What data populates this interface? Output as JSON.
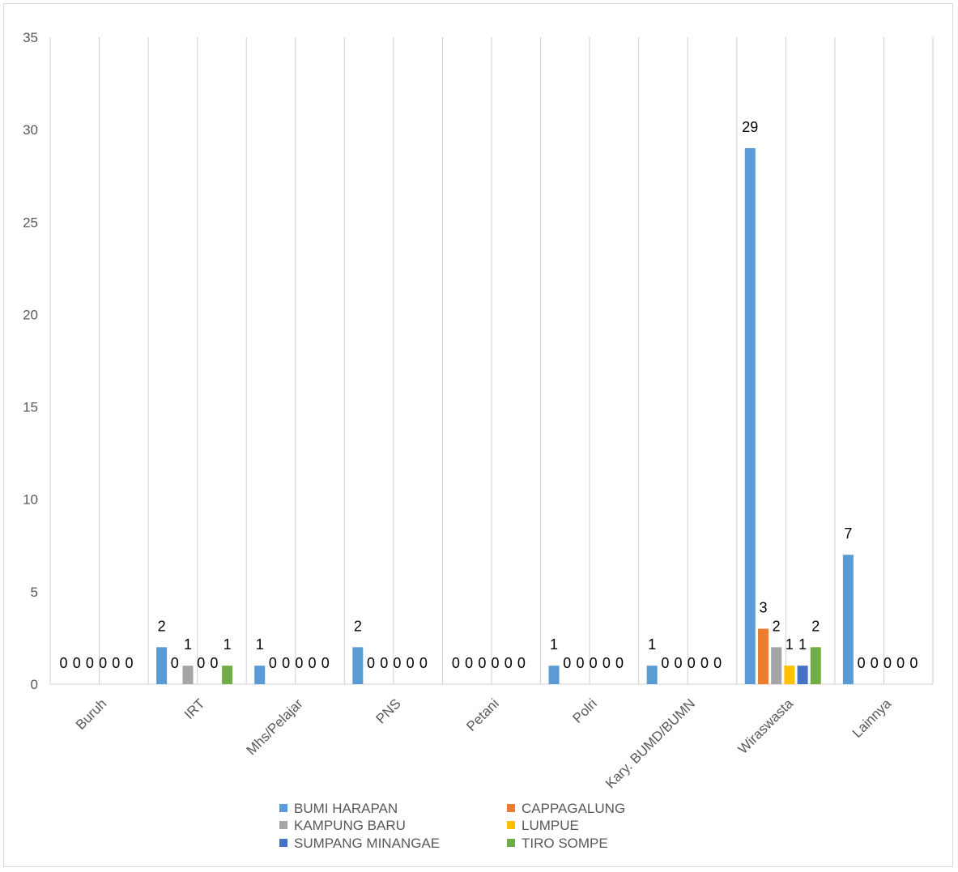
{
  "chart_data": {
    "type": "bar",
    "categories": [
      "Buruh",
      "IRT",
      "Mhs/Pelajar",
      "PNS",
      "Petani",
      "Polri",
      "Kary. BUMD/BUMN",
      "Wiraswasta",
      "Lainnya"
    ],
    "series": [
      {
        "name": "BUMI HARAPAN",
        "color": "#5b9bd5",
        "values": [
          0,
          2,
          1,
          2,
          0,
          1,
          1,
          29,
          7
        ]
      },
      {
        "name": "CAPPAGALUNG",
        "color": "#ed7d31",
        "values": [
          0,
          0,
          0,
          0,
          0,
          0,
          0,
          3,
          0
        ]
      },
      {
        "name": "KAMPUNG BARU",
        "color": "#a5a5a5",
        "values": [
          0,
          1,
          0,
          0,
          0,
          0,
          0,
          2,
          0
        ]
      },
      {
        "name": "LUMPUE",
        "color": "#ffc000",
        "values": [
          0,
          0,
          0,
          0,
          0,
          0,
          0,
          1,
          0
        ]
      },
      {
        "name": "SUMPANG MINANGAE",
        "color": "#4472c4",
        "values": [
          0,
          0,
          0,
          0,
          0,
          0,
          0,
          1,
          0
        ]
      },
      {
        "name": "TIRO SOMPE",
        "color": "#70ad47",
        "values": [
          0,
          1,
          0,
          0,
          0,
          0,
          0,
          2,
          0
        ]
      }
    ],
    "ylim": [
      0,
      35
    ],
    "yticks": [
      0,
      5,
      10,
      15,
      20,
      25,
      30,
      35
    ],
    "grid": "vertical",
    "legend_position": "bottom",
    "title": "",
    "xlabel": "",
    "ylabel": ""
  }
}
